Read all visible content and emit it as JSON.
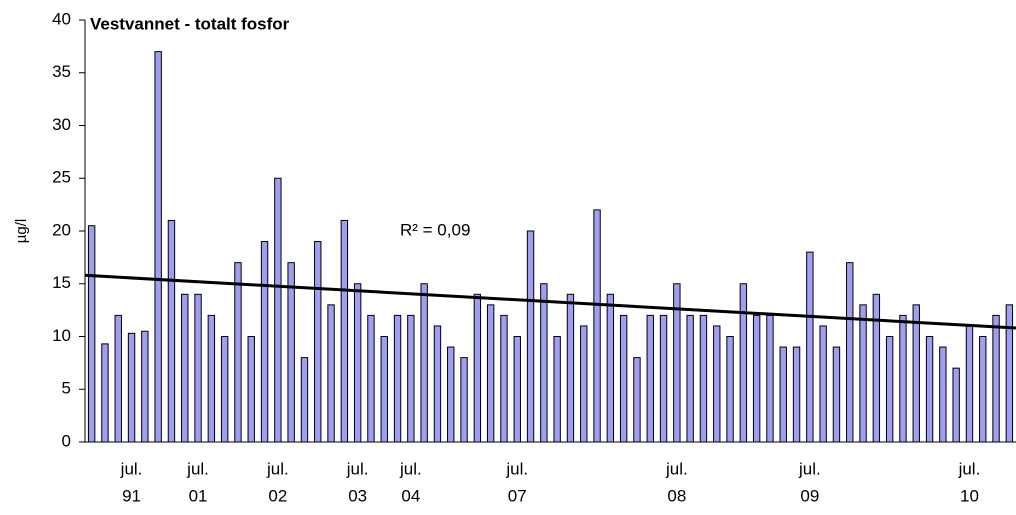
{
  "chart_data": {
    "type": "bar",
    "title": "Vestvannet - totalt fosfor",
    "y_label": "µg/l",
    "annotation": "R² =  0,09",
    "categories": [
      null,
      null,
      null,
      {
        "month": "jul.",
        "year": "91"
      },
      null,
      null,
      null,
      null,
      {
        "month": "jul.",
        "year": "01"
      },
      null,
      null,
      null,
      null,
      null,
      {
        "month": "jul.",
        "year": "02"
      },
      null,
      null,
      null,
      null,
      null,
      {
        "month": "jul.",
        "year": "03"
      },
      null,
      null,
      null,
      {
        "month": "jul.",
        "year": "04"
      },
      null,
      null,
      null,
      null,
      null,
      null,
      null,
      {
        "month": "jul.",
        "year": "07"
      },
      null,
      null,
      null,
      null,
      null,
      null,
      null,
      null,
      null,
      null,
      null,
      {
        "month": "jul.",
        "year": "08"
      },
      null,
      null,
      null,
      null,
      null,
      null,
      null,
      null,
      null,
      {
        "month": "jul.",
        "year": "09"
      },
      null,
      null,
      null,
      null,
      null,
      null,
      null,
      null,
      null,
      null,
      null,
      {
        "month": "jul.",
        "year": "10"
      },
      null,
      null,
      null
    ],
    "values": [
      20.5,
      9.3,
      12,
      10.3,
      10.5,
      37,
      21,
      14,
      14,
      12,
      10,
      17,
      10,
      19,
      25,
      17,
      8,
      19,
      13,
      21,
      15,
      12,
      10,
      12,
      12,
      15,
      11,
      9,
      8,
      14,
      13,
      12,
      10,
      20,
      15,
      10,
      14,
      11,
      22,
      14,
      12,
      8,
      12,
      12,
      15,
      12,
      12,
      11,
      10,
      15,
      12,
      12,
      9,
      9,
      18,
      11,
      9,
      17,
      13,
      14,
      10,
      12,
      13,
      10,
      9,
      7,
      11,
      10,
      12,
      13
    ],
    "color": "#9f9ff2",
    "trendline": [
      15.8,
      10.8
    ],
    "trend_color": "#000000",
    "ylim": [
      0,
      40
    ],
    "yticks": [
      0,
      5,
      10,
      15,
      20,
      25,
      30,
      35,
      40
    ],
    "grid": false
  }
}
